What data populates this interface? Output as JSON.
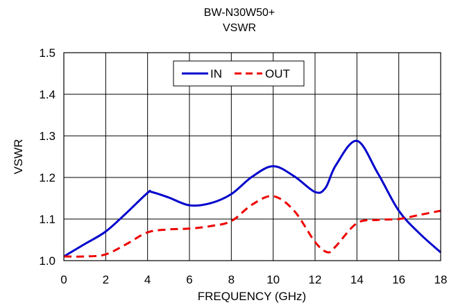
{
  "chart_data": {
    "type": "line",
    "title": "BW-N30W50+",
    "subtitle": "VSWR",
    "xlabel": "FREQUENCY (GHz)",
    "ylabel": "VSWR",
    "xlim": [
      0,
      18
    ],
    "ylim": [
      1.0,
      1.5
    ],
    "xticks": [
      0,
      2,
      4,
      6,
      8,
      10,
      12,
      14,
      16,
      18
    ],
    "xtick_labels": [
      "0",
      "2",
      "4",
      "6",
      "8",
      "10",
      "12",
      "14",
      "16",
      "18"
    ],
    "yticks": [
      1.0,
      1.1,
      1.2,
      1.3,
      1.4,
      1.5
    ],
    "ytick_labels": [
      "1.0",
      "1.1",
      "1.2",
      "1.3",
      "1.4",
      "1.5"
    ],
    "grid": true,
    "legend_position": "top-center",
    "series": [
      {
        "name": "IN",
        "color": "#0000cc",
        "dash": "solid",
        "x": [
          0,
          1,
          2,
          3,
          4,
          4.2,
          5,
          6,
          7,
          8,
          9,
          10,
          11,
          12,
          12.5,
          13,
          14,
          15,
          16,
          17,
          18
        ],
        "y": [
          1.01,
          1.04,
          1.07,
          1.115,
          1.163,
          1.165,
          1.152,
          1.133,
          1.138,
          1.16,
          1.202,
          1.227,
          1.203,
          1.165,
          1.175,
          1.23,
          1.288,
          1.21,
          1.12,
          1.065,
          1.02
        ]
      },
      {
        "name": "OUT",
        "color": "#ee0000",
        "dash": "dashed",
        "x": [
          0,
          1,
          2,
          3,
          4,
          5,
          6,
          7,
          8,
          9,
          10,
          11,
          12,
          12.6,
          13,
          14,
          15,
          16,
          17,
          18
        ],
        "y": [
          1.01,
          1.01,
          1.015,
          1.04,
          1.068,
          1.075,
          1.077,
          1.083,
          1.095,
          1.135,
          1.155,
          1.12,
          1.045,
          1.02,
          1.035,
          1.09,
          1.098,
          1.1,
          1.11,
          1.12
        ]
      }
    ]
  }
}
